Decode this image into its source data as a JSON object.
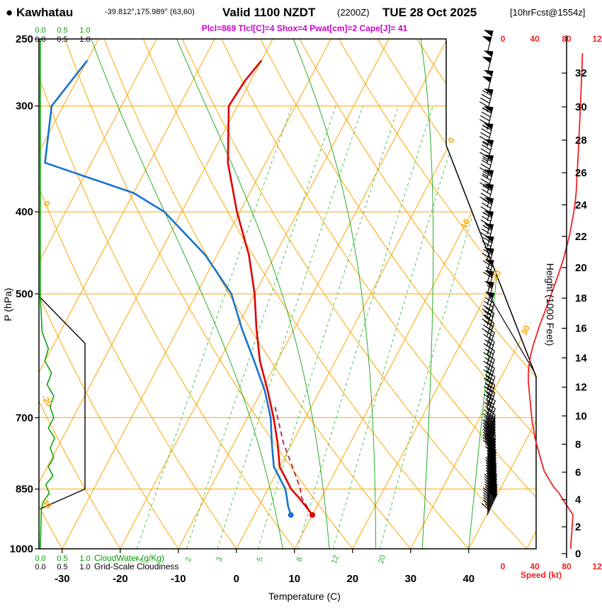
{
  "header": {
    "station": "● Kawhatau",
    "coords": "-39.812°,175.989° (63,60)",
    "valid": "Valid 1100 NZDT",
    "valid_z": "(2200Z)",
    "valid_date": "TUE 28 Oct 2025",
    "fcst": "[10hrFcst@1554z]",
    "indices": "Plcl=869 Tlcl[C]=4 Shox=4 Pwat[cm]=2 Cape[J]= 41"
  },
  "colors": {
    "grid_orange": "#ffa500",
    "green": "#00a000",
    "mixing_green": "#4cc24c",
    "temp_red": "#dd0000",
    "dewpoint_blue": "#1874cd",
    "parcel_magenta": "#b03060",
    "speed_red": "#ee2222",
    "barb_black": "#000000"
  },
  "axes": {
    "pressure": {
      "label": "P (hPa)",
      "ticks": [
        250,
        300,
        400,
        500,
        700,
        850,
        1000
      ]
    },
    "temperature": {
      "label": "Temperature (C)",
      "ticks": [
        -30,
        -20,
        -10,
        0,
        10,
        20,
        30,
        40
      ]
    },
    "height": {
      "label": "Height (1000 Feet)",
      "ticks": [
        0,
        2,
        4,
        6,
        8,
        10,
        12,
        14,
        16,
        18,
        20,
        22,
        24,
        26,
        28,
        30,
        32
      ]
    },
    "speed": {
      "label": "Speed (kt)",
      "tick_labels": [
        "0",
        "40",
        "80",
        "12"
      ]
    },
    "cloudwater": {
      "label": "CloudWater (g/Kg)",
      "tick_labels": [
        "0.0",
        "0.5",
        "1.0"
      ]
    },
    "cloudiness": {
      "label": "Grid-Scale Cloudiness",
      "tick_labels": [
        "0.0",
        "0.5",
        "1.0"
      ]
    }
  },
  "grid_labels": {
    "isotherms_right": [
      "0",
      "10",
      "20",
      "30"
    ],
    "adiabats_left": [
      "0",
      "-20",
      "40"
    ],
    "isotherm_values": [
      0,
      10,
      20,
      30
    ]
  },
  "chart_data": {
    "type": "line",
    "variant": "skew-t log-p atmospheric sounding",
    "pressure_axis_hpa": {
      "min": 250,
      "max": 1000,
      "scale": "log",
      "labeled": [
        250,
        300,
        400,
        500,
        700,
        850,
        1000
      ]
    },
    "temperature_axis_c": {
      "min": -34,
      "max": 51,
      "labeled": [
        -30,
        -20,
        -10,
        0,
        10,
        20,
        30,
        40
      ]
    },
    "indices": {
      "Plcl_hpa": 869,
      "Tlcl_c": 4,
      "Showalter": 4,
      "Pwat_cm": 2,
      "Cape_j": 41
    },
    "mixing_ratio_lines_gkg": [
      1,
      2,
      3,
      5,
      8,
      12,
      20
    ],
    "moist_adiabats_c": [
      8,
      16,
      24,
      32,
      40
    ],
    "temperature_profile": [
      [
        912,
        10
      ],
      [
        890,
        8
      ],
      [
        869,
        6
      ],
      [
        850,
        4
      ],
      [
        800,
        0
      ],
      [
        750,
        -2.5
      ],
      [
        700,
        -5.5
      ],
      [
        650,
        -9
      ],
      [
        600,
        -13
      ],
      [
        550,
        -16.5
      ],
      [
        500,
        -20
      ],
      [
        450,
        -24.5
      ],
      [
        400,
        -30.5
      ],
      [
        350,
        -36.5
      ],
      [
        300,
        -41.5
      ],
      [
        280,
        -41
      ],
      [
        265,
        -40
      ]
    ],
    "dewpoint_profile": [
      [
        912,
        6.3
      ],
      [
        890,
        5
      ],
      [
        869,
        4
      ],
      [
        850,
        3
      ],
      [
        800,
        -1
      ],
      [
        750,
        -3.5
      ],
      [
        700,
        -6
      ],
      [
        650,
        -9.5
      ],
      [
        600,
        -14
      ],
      [
        550,
        -19
      ],
      [
        500,
        -24
      ],
      [
        450,
        -32
      ],
      [
        400,
        -43
      ],
      [
        380,
        -50
      ],
      [
        350,
        -68
      ],
      [
        300,
        -72
      ],
      [
        265,
        -70
      ]
    ],
    "parcel_path": [
      [
        912,
        10
      ],
      [
        869,
        6.5
      ],
      [
        850,
        5.6
      ],
      [
        800,
        2.2
      ],
      [
        750,
        -1.5
      ],
      [
        700,
        -4.8
      ],
      [
        680,
        -6.2
      ]
    ],
    "cloud_fraction_profile": [
      [
        505,
        0
      ],
      [
        572,
        1
      ],
      [
        850,
        1
      ],
      [
        897,
        0
      ]
    ],
    "cloud_water_profile": [
      [
        250,
        0
      ],
      [
        505,
        0
      ],
      [
        555,
        0.04
      ],
      [
        580,
        0.18
      ],
      [
        600,
        0.1
      ],
      [
        620,
        0.25
      ],
      [
        640,
        0.15
      ],
      [
        660,
        0.3
      ],
      [
        680,
        0.22
      ],
      [
        700,
        0.3
      ],
      [
        720,
        0.18
      ],
      [
        740,
        0.32
      ],
      [
        760,
        0.22
      ],
      [
        780,
        0.3
      ],
      [
        800,
        0.18
      ],
      [
        820,
        0.28
      ],
      [
        840,
        0.12
      ],
      [
        860,
        0.2
      ],
      [
        880,
        0.06
      ],
      [
        900,
        0.02
      ],
      [
        1000,
        0
      ]
    ],
    "wind_profile": [
      [
        912,
        88,
        25
      ],
      [
        906,
        86,
        25
      ],
      [
        900,
        84,
        25
      ],
      [
        894,
        82,
        25
      ],
      [
        888,
        80,
        25
      ],
      [
        882,
        78,
        24
      ],
      [
        876,
        76,
        24
      ],
      [
        870,
        74,
        24
      ],
      [
        864,
        72,
        24
      ],
      [
        858,
        70,
        23
      ],
      [
        852,
        67,
        23
      ],
      [
        846,
        64,
        23
      ],
      [
        840,
        62,
        23
      ],
      [
        834,
        60,
        22
      ],
      [
        828,
        58,
        22
      ],
      [
        822,
        56,
        22
      ],
      [
        816,
        54,
        22
      ],
      [
        810,
        52,
        22
      ],
      [
        804,
        51,
        21
      ],
      [
        798,
        50,
        21
      ],
      [
        792,
        49,
        21
      ],
      [
        786,
        48,
        21
      ],
      [
        780,
        47,
        21
      ],
      [
        774,
        46,
        20
      ],
      [
        768,
        45,
        20
      ],
      [
        762,
        44,
        20
      ],
      [
        756,
        43,
        20
      ],
      [
        750,
        42,
        20
      ],
      [
        744,
        41,
        20
      ],
      [
        738,
        40,
        20
      ],
      [
        725,
        39,
        20
      ],
      [
        710,
        37,
        20
      ],
      [
        695,
        36,
        19
      ],
      [
        680,
        35,
        19
      ],
      [
        665,
        34,
        19
      ],
      [
        650,
        33,
        18
      ],
      [
        635,
        32,
        18
      ],
      [
        620,
        32,
        18
      ],
      [
        605,
        33,
        18
      ],
      [
        590,
        35,
        18
      ],
      [
        575,
        38,
        17
      ],
      [
        560,
        42,
        17
      ],
      [
        545,
        46,
        17
      ],
      [
        530,
        51,
        17
      ],
      [
        515,
        56,
        16
      ],
      [
        500,
        61,
        16
      ],
      [
        485,
        66,
        16
      ],
      [
        470,
        71,
        16
      ],
      [
        455,
        76,
        16
      ],
      [
        440,
        80,
        15
      ],
      [
        425,
        84,
        15
      ],
      [
        410,
        87,
        15
      ],
      [
        395,
        90,
        15
      ],
      [
        380,
        92,
        15
      ],
      [
        365,
        93,
        15
      ],
      [
        350,
        94,
        15
      ],
      [
        335,
        95,
        14
      ],
      [
        320,
        96,
        14
      ],
      [
        305,
        97,
        14
      ],
      [
        290,
        98,
        14
      ],
      [
        275,
        99,
        14
      ],
      [
        260,
        100,
        14
      ]
    ],
    "speed_curve_extra": [
      [
        940,
        87
      ],
      [
        970,
        86
      ],
      [
        1000,
        85
      ]
    ],
    "speed_axis_kt": {
      "min": 0,
      "max": 120,
      "labeled": [
        0,
        40,
        80,
        120
      ]
    }
  }
}
